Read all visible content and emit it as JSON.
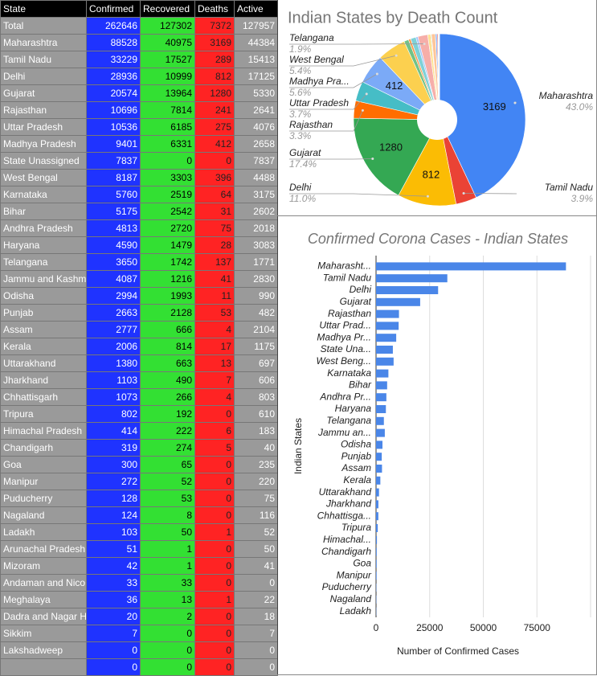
{
  "table": {
    "header": [
      "State",
      "Confirmed",
      "Recovered",
      "Deaths",
      "Active"
    ],
    "rows": [
      [
        "Total",
        262646,
        127302,
        7372,
        127957
      ],
      [
        "Maharashtra",
        88528,
        40975,
        3169,
        44384
      ],
      [
        "Tamil Nadu",
        33229,
        17527,
        289,
        15413
      ],
      [
        "Delhi",
        28936,
        10999,
        812,
        17125
      ],
      [
        "Gujarat",
        20574,
        13964,
        1280,
        5330
      ],
      [
        "Rajasthan",
        10696,
        7814,
        241,
        2641
      ],
      [
        "Uttar Pradesh",
        10536,
        6185,
        275,
        4076
      ],
      [
        "Madhya Pradesh",
        9401,
        6331,
        412,
        2658
      ],
      [
        "State Unassigned",
        7837,
        0,
        0,
        7837
      ],
      [
        "West Bengal",
        8187,
        3303,
        396,
        4488
      ],
      [
        "Karnataka",
        5760,
        2519,
        64,
        3175
      ],
      [
        "Bihar",
        5175,
        2542,
        31,
        2602
      ],
      [
        "Andhra Pradesh",
        4813,
        2720,
        75,
        2018
      ],
      [
        "Haryana",
        4590,
        1479,
        28,
        3083
      ],
      [
        "Telangana",
        3650,
        1742,
        137,
        1771
      ],
      [
        "Jammu and Kashm",
        4087,
        1216,
        41,
        2830
      ],
      [
        "Odisha",
        2994,
        1993,
        11,
        990
      ],
      [
        "Punjab",
        2663,
        2128,
        53,
        482
      ],
      [
        "Assam",
        2777,
        666,
        4,
        2104
      ],
      [
        "Kerala",
        2006,
        814,
        17,
        1175
      ],
      [
        "Uttarakhand",
        1380,
        663,
        13,
        697
      ],
      [
        "Jharkhand",
        1103,
        490,
        7,
        606
      ],
      [
        "Chhattisgarh",
        1073,
        266,
        4,
        803
      ],
      [
        "Tripura",
        802,
        192,
        0,
        610
      ],
      [
        "Himachal Pradesh",
        414,
        222,
        6,
        183
      ],
      [
        "Chandigarh",
        319,
        274,
        5,
        40
      ],
      [
        "Goa",
        300,
        65,
        0,
        235
      ],
      [
        "Manipur",
        272,
        52,
        0,
        220
      ],
      [
        "Puducherry",
        128,
        53,
        0,
        75
      ],
      [
        "Nagaland",
        124,
        8,
        0,
        116
      ],
      [
        "Ladakh",
        103,
        50,
        1,
        52
      ],
      [
        "Arunachal Pradesh",
        51,
        1,
        0,
        50
      ],
      [
        "Mizoram",
        42,
        1,
        0,
        41
      ],
      [
        "Andaman and Nico",
        33,
        33,
        0,
        0
      ],
      [
        "Meghalaya",
        36,
        13,
        1,
        22
      ],
      [
        "Dadra and Nagar H",
        20,
        2,
        0,
        18
      ],
      [
        "Sikkim",
        7,
        0,
        0,
        7
      ],
      [
        "Lakshadweep",
        0,
        0,
        0,
        0
      ],
      [
        null,
        0,
        0,
        0,
        0
      ]
    ]
  },
  "chart_data": [
    {
      "type": "pie",
      "title": "Indian States by Death Count",
      "donut": true,
      "categories": [
        "Maharashtra",
        "Tamil Nadu",
        "Delhi",
        "Gujarat",
        "Rajasthan",
        "Uttar Pradesh",
        "Madhya Pra...",
        null,
        "West Bengal",
        null,
        null,
        null,
        null,
        "Telangana",
        null,
        null,
        null,
        null,
        null,
        null,
        null,
        null,
        null,
        null,
        null,
        null,
        null,
        null,
        null,
        null,
        null,
        null,
        null,
        null,
        null,
        null,
        null
      ],
      "values": [
        3169,
        289,
        812,
        1280,
        241,
        275,
        412,
        0,
        396,
        64,
        31,
        75,
        28,
        137,
        41,
        11,
        53,
        4,
        17,
        13,
        7,
        4,
        0,
        6,
        5,
        0,
        0,
        0,
        0,
        1,
        0,
        0,
        0,
        1,
        0,
        0,
        0
      ],
      "value_labels": [
        "3169",
        null,
        "812",
        "1280",
        null,
        null,
        "412",
        null,
        null,
        null,
        null,
        null,
        null,
        null,
        null,
        null,
        null,
        null,
        null,
        null,
        null,
        null,
        null,
        null,
        null,
        null,
        null,
        null,
        null,
        null,
        null,
        null,
        null,
        null,
        null,
        null,
        null
      ],
      "percent_labels": [
        "43.0%",
        "3.9%",
        "11.0%",
        "17.4%",
        "3.3%",
        "3.7%",
        "5.6%",
        null,
        "5.4%",
        null,
        null,
        null,
        null,
        "1.9%",
        null,
        null,
        null,
        null,
        null,
        null,
        null,
        null,
        null,
        null,
        null,
        null,
        null,
        null,
        null,
        null,
        null,
        null,
        null,
        null,
        null,
        null,
        null
      ],
      "colors": [
        "#4285f4",
        "#ea4335",
        "#fbbc04",
        "#34a853",
        "#ff6d01",
        "#46bdc6",
        "#7baaf7",
        "#f07b72",
        "#fcd04f",
        "#71c287",
        "#ff994d",
        "#7ed1d7",
        "#a0c3ff",
        "#f6aea9",
        "#fde293",
        "#a8dab5",
        "#ffc599",
        "#b5e5e8"
      ]
    },
    {
      "type": "bar",
      "orientation": "horizontal",
      "title": "Confirmed Corona Cases - Indian States",
      "x_label": "Number of Confirmed Cases",
      "y_label": "Indian States",
      "categories": [
        "Maharasht...",
        "Tamil Nadu",
        "Delhi",
        "Gujarat",
        "Rajasthan",
        "Uttar Prad...",
        "Madhya Pr...",
        "State Una...",
        "West Beng...",
        "Karnataka",
        "Bihar",
        "Andhra Pr...",
        "Haryana",
        "Telangana",
        "Jammu an...",
        "Odisha",
        "Punjab",
        "Assam",
        "Kerala",
        "Uttarakhand",
        "Jharkhand",
        "Chhattisga...",
        "Tripura",
        "Himachal...",
        "Chandigarh",
        "Goa",
        "Manipur",
        "Puducherry",
        "Nagaland",
        "Ladakh"
      ],
      "values": [
        88528,
        33229,
        28936,
        20574,
        10696,
        10536,
        9401,
        7837,
        8187,
        5760,
        5175,
        4813,
        4590,
        3650,
        4087,
        2994,
        2663,
        2777,
        2006,
        1380,
        1103,
        1073,
        802,
        414,
        319,
        300,
        272,
        128,
        124,
        103
      ],
      "color": "#4a86e8",
      "xlim": [
        0,
        100000
      ],
      "xticks": [
        0,
        25000,
        50000,
        75000
      ],
      "grid": true
    }
  ]
}
